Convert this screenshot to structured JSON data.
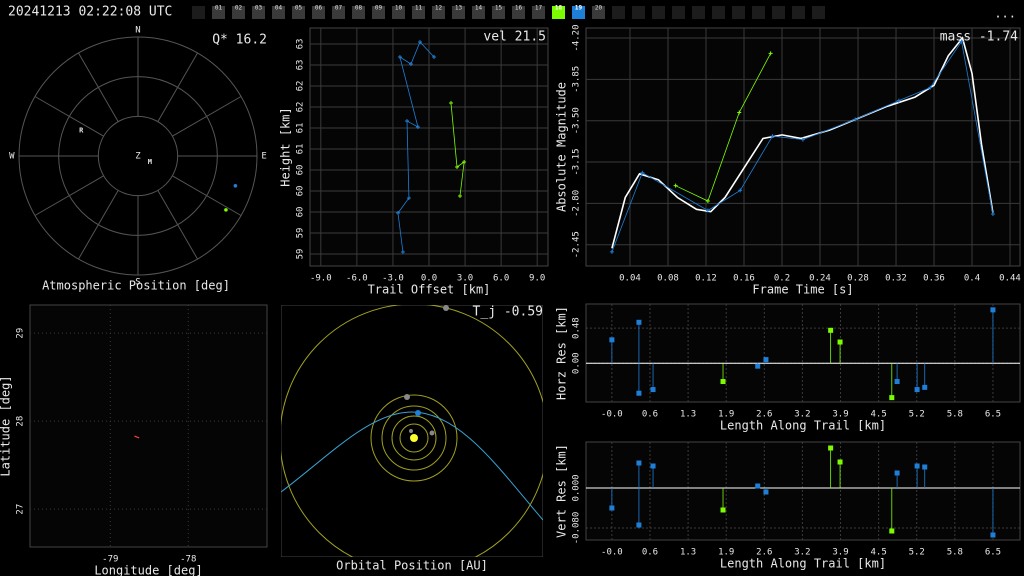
{
  "header": {
    "timestamp": "20241213 02:22:08 UTC",
    "menu": "...",
    "stations": [
      "01",
      "02",
      "03",
      "04",
      "05",
      "06",
      "07",
      "08",
      "09",
      "10",
      "11",
      "12",
      "13",
      "14",
      "15",
      "16",
      "17",
      "18",
      "19",
      "20"
    ],
    "station_color": "#3a3a3a",
    "highlight": {
      "18": "#7cfc00",
      "19": "#1e7fd8"
    }
  },
  "chart_data": [
    {
      "type": "polar",
      "xlabel": "Atmospheric Position [deg]",
      "annotation": "Q* 16.2",
      "directions": {
        "N": 0,
        "E": 90,
        "S": 180,
        "W": 270
      },
      "zenith": "Z",
      "rlim": [
        0,
        90
      ],
      "rticks": [
        30,
        60,
        90
      ],
      "stations": [
        {
          "label": "R",
          "az": 294,
          "zen": 47
        },
        {
          "label": "M",
          "az": 116.6,
          "zen": 10
        }
      ],
      "series": [
        {
          "color": "#1e7fd8",
          "az": [
            107
          ],
          "zen": [
            77
          ]
        },
        {
          "color": "#7cfc00",
          "az": [
            121.5
          ],
          "zen": [
            78
          ]
        }
      ]
    },
    {
      "type": "line",
      "xlabel": "Trail Offset [km]",
      "ylabel": "Height [km]",
      "annotation": "vel 21.5",
      "xlim": [
        -9.9,
        9.9
      ],
      "ylim": [
        58.56,
        63.32
      ],
      "grid": true,
      "xticks": [
        {
          "value": -9,
          "label": "-9.0"
        },
        {
          "value": -6,
          "label": "-6.0"
        },
        {
          "value": -3,
          "label": "-3.0"
        },
        {
          "value": 0,
          "label": "0.0"
        },
        {
          "value": 3,
          "label": "3.0"
        },
        {
          "value": 6,
          "label": "6.0"
        },
        {
          "value": 9,
          "label": "9.0"
        }
      ],
      "yticks": [
        {
          "value": 58.8,
          "label": "59"
        },
        {
          "value": 59.22,
          "label": "59"
        },
        {
          "value": 59.64,
          "label": "60"
        },
        {
          "value": 60.06,
          "label": "60"
        },
        {
          "value": 60.48,
          "label": "60"
        },
        {
          "value": 60.9,
          "label": "61"
        },
        {
          "value": 61.32,
          "label": "61"
        },
        {
          "value": 61.74,
          "label": "62"
        },
        {
          "value": 62.16,
          "label": "62"
        },
        {
          "value": 62.58,
          "label": "63"
        },
        {
          "value": 63.0,
          "label": "63"
        }
      ],
      "series": [
        {
          "color": "#1e7fd8",
          "x": [
            -2.17,
            -2.58,
            -1.67,
            -1.83,
            -0.92,
            -2.42,
            -1.5,
            -0.75,
            0.42
          ],
          "y": [
            58.84,
            59.62,
            59.92,
            61.46,
            61.34,
            62.74,
            62.6,
            63.04,
            62.74
          ]
        },
        {
          "color": "#7cfc00",
          "x": [
            1.83,
            2.33,
            2.92,
            2.58
          ],
          "y": [
            61.82,
            60.54,
            60.64,
            59.96
          ]
        }
      ]
    },
    {
      "type": "line",
      "xlabel": "Frame Time [s]",
      "ylabel": "Absolute Magnitude",
      "annotation": "mass -1.74",
      "xlim": [
        -0.0063,
        0.4505
      ],
      "ylim": [
        -2.27,
        -4.285
      ],
      "grid": true,
      "xticks": [
        0.04,
        0.08,
        0.12,
        0.16,
        0.2,
        0.24,
        0.28,
        0.32,
        0.36,
        0.4,
        0.44
      ],
      "yticks": [
        {
          "value": -4.2,
          "label": "-4.20"
        },
        {
          "value": -3.85,
          "label": "-3.85"
        },
        {
          "value": -3.5,
          "label": "-3.50"
        },
        {
          "value": -3.15,
          "label": "-3.15"
        },
        {
          "value": -2.8,
          "label": "-2.80"
        },
        {
          "value": -2.45,
          "label": "-2.45"
        }
      ],
      "series": [
        {
          "color": "#ffffff",
          "x": [
            0.021,
            0.035,
            0.05,
            0.07,
            0.09,
            0.11,
            0.125,
            0.14,
            0.16,
            0.18,
            0.2,
            0.22,
            0.25,
            0.28,
            0.31,
            0.34,
            0.36,
            0.375,
            0.39,
            0.4,
            0.41,
            0.422
          ],
          "y": [
            -2.42,
            -2.85,
            -3.05,
            -3.0,
            -2.85,
            -2.75,
            -2.73,
            -2.85,
            -3.1,
            -3.35,
            -3.38,
            -3.35,
            -3.42,
            -3.52,
            -3.62,
            -3.7,
            -3.8,
            -4.05,
            -4.2,
            -3.9,
            -3.3,
            -2.72
          ]
        },
        {
          "color": "#1e7fd8",
          "x": [
            0.021,
            0.053,
            0.122,
            0.156,
            0.19,
            0.222,
            0.277,
            0.323,
            0.356,
            0.389,
            0.422
          ],
          "y": [
            -2.39,
            -3.06,
            -2.74,
            -2.91,
            -3.37,
            -3.34,
            -3.51,
            -3.67,
            -3.78,
            -4.17,
            -2.71
          ]
        },
        {
          "color": "#7cfc00",
          "x": [
            0.088,
            0.122,
            0.155,
            0.188
          ],
          "y": [
            -2.95,
            -2.82,
            -3.57,
            -4.07
          ]
        }
      ]
    },
    {
      "type": "map",
      "xlabel": "Longitude [deg]",
      "ylabel": "Latitude [deg]",
      "xlim": [
        -80.03,
        -76.99
      ],
      "ylim": [
        26.57,
        29.32
      ],
      "grid": true,
      "xticks": [
        -79,
        -78
      ],
      "yticks": [
        27,
        28,
        29
      ],
      "series": [
        {
          "color": "#ff4040",
          "x": [
            -78.69,
            -78.63
          ],
          "y": [
            27.83,
            27.81
          ]
        }
      ]
    },
    {
      "type": "orbit",
      "xlabel": "Orbital Position [AU]",
      "annotation": "T_j -0.59"
    },
    {
      "type": "stem",
      "xlabel": "Length Along Trail [km]",
      "ylabel": "Horz Res [km]",
      "xlim": [
        -0.44,
        6.94
      ],
      "ylim": [
        -0.53,
        0.81
      ],
      "grid": true,
      "xticks": [
        {
          "value": 0,
          "label": "-0.0"
        },
        {
          "value": 0.648,
          "label": "0.6"
        },
        {
          "value": 1.296,
          "label": "1.3"
        },
        {
          "value": 1.944,
          "label": "1.9"
        },
        {
          "value": 2.592,
          "label": "2.6"
        },
        {
          "value": 3.24,
          "label": "3.2"
        },
        {
          "value": 3.888,
          "label": "3.9"
        },
        {
          "value": 4.536,
          "label": "4.5"
        },
        {
          "value": 5.184,
          "label": "5.2"
        },
        {
          "value": 5.832,
          "label": "5.8"
        },
        {
          "value": 6.48,
          "label": "6.5"
        }
      ],
      "yticks": [
        {
          "value": 0.48,
          "label": "0.48"
        },
        {
          "value": 0,
          "label": "0.00"
        }
      ],
      "series": [
        {
          "color": "#1e7fd8",
          "x": [
            0,
            0.46,
            0.46,
            0.7,
            2.48,
            2.62,
            4.85,
            5.19,
            5.32,
            6.48
          ],
          "y": [
            0.32,
            0.56,
            -0.41,
            -0.36,
            -0.04,
            0.05,
            -0.25,
            -0.36,
            -0.33,
            0.73
          ]
        },
        {
          "color": "#7cfc00",
          "x": [
            1.89,
            3.72,
            3.88,
            4.76
          ],
          "y": [
            -0.25,
            0.45,
            0.29,
            -0.47
          ]
        }
      ]
    },
    {
      "type": "stem",
      "xlabel": "Length Along Trail [km]",
      "ylabel": "Vert Res [km]",
      "xlim": [
        -0.44,
        6.94
      ],
      "ylim": [
        -0.104,
        0.092
      ],
      "grid": true,
      "xticks": [
        {
          "value": 0,
          "label": "-0.0"
        },
        {
          "value": 0.648,
          "label": "0.6"
        },
        {
          "value": 1.296,
          "label": "1.3"
        },
        {
          "value": 1.944,
          "label": "1.9"
        },
        {
          "value": 2.592,
          "label": "2.6"
        },
        {
          "value": 3.24,
          "label": "3.2"
        },
        {
          "value": 3.888,
          "label": "3.9"
        },
        {
          "value": 4.536,
          "label": "4.5"
        },
        {
          "value": 5.184,
          "label": "5.2"
        },
        {
          "value": 5.832,
          "label": "5.8"
        },
        {
          "value": 6.48,
          "label": "6.5"
        }
      ],
      "yticks": [
        {
          "value": 0,
          "label": "0.000"
        },
        {
          "value": -0.08,
          "label": "-0.080"
        }
      ],
      "series": [
        {
          "color": "#1e7fd8",
          "x": [
            0,
            0.46,
            0.46,
            0.7,
            2.48,
            2.62,
            4.85,
            5.19,
            5.32,
            6.48
          ],
          "y": [
            -0.04,
            0.05,
            -0.074,
            0.044,
            0.004,
            -0.008,
            0.03,
            0.044,
            0.042,
            -0.094
          ]
        },
        {
          "color": "#7cfc00",
          "x": [
            1.89,
            3.72,
            3.88,
            4.76
          ],
          "y": [
            -0.044,
            0.08,
            0.052,
            -0.086
          ]
        }
      ]
    }
  ]
}
